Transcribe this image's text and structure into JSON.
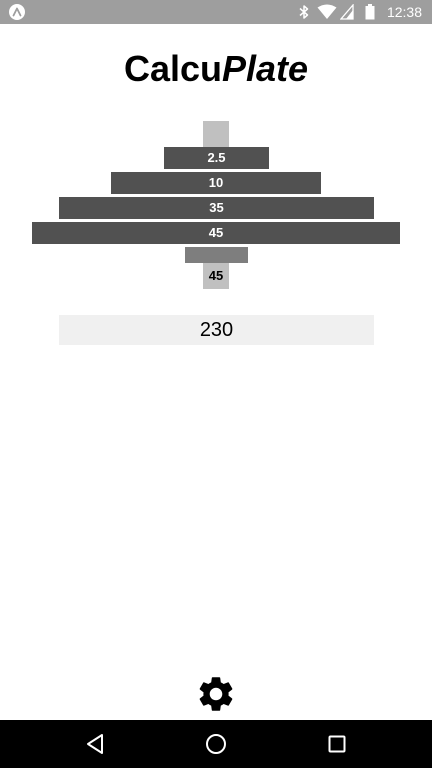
{
  "status_bar": {
    "time": "12:38",
    "icons": [
      "app-notification-icon",
      "bluetooth-icon",
      "wifi-icon",
      "cellular-signal-icon",
      "battery-icon"
    ]
  },
  "title": {
    "part_regular": "Calcu",
    "part_italic": "Plate"
  },
  "barbell": {
    "plates": [
      "2.5",
      "10",
      "35",
      "45"
    ],
    "bar_weight": "45"
  },
  "total": {
    "value": "230"
  },
  "settings": {
    "icon": "gear-icon"
  },
  "nav_bar": {
    "icons": [
      "back-icon",
      "home-icon",
      "recents-icon"
    ]
  },
  "colors": {
    "status_bar": "#9e9e9e",
    "plate": "#515151",
    "bar_light": "#c0c0c0",
    "collar": "#7e7e7e",
    "total_background": "#f0f0f0",
    "nav_bar": "#000000"
  }
}
